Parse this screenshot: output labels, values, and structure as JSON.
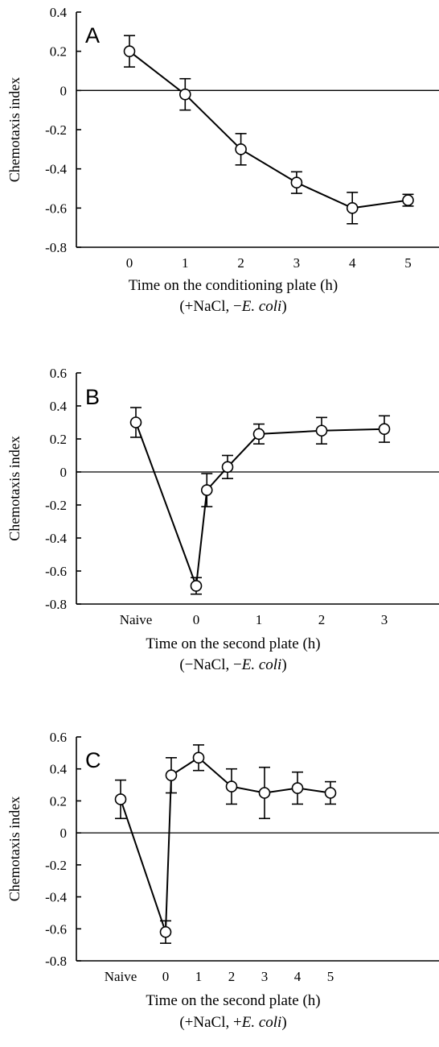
{
  "chart_data": [
    {
      "type": "scatter",
      "panel_label": "A",
      "ylabel": "Chemotaxis index",
      "xlabel_line1": "Time on the conditioning plate (h)",
      "xlabel_line2_pre": "(+NaCl, −",
      "xlabel_line2_ital": "E. coli",
      "xlabel_line2_post": ")",
      "ylim": [
        -0.8,
        0.4
      ],
      "yticks": [
        "0.4",
        "0.2",
        "0",
        "-0.2",
        "-0.4",
        "-0.6",
        "-0.8"
      ],
      "xticks": [
        "0",
        "1",
        "2",
        "3",
        "4",
        "5"
      ],
      "points": [
        {
          "x": 0,
          "y": 0.2,
          "err": 0.08
        },
        {
          "x": 1,
          "y": -0.02,
          "err": 0.08
        },
        {
          "x": 2,
          "y": -0.3,
          "err": 0.08
        },
        {
          "x": 3,
          "y": -0.47,
          "err": 0.055
        },
        {
          "x": 4,
          "y": -0.6,
          "err": 0.08
        },
        {
          "x": 5,
          "y": -0.56,
          "err": 0.03
        }
      ]
    },
    {
      "type": "scatter",
      "panel_label": "B",
      "ylabel": "Chemotaxis index",
      "xlabel_line1": "Time on the second plate (h)",
      "xlabel_line2_pre": "(−NaCl, −",
      "xlabel_line2_ital": "E. coli",
      "xlabel_line2_post": ")",
      "ylim": [
        -0.8,
        0.6
      ],
      "yticks": [
        "0.6",
        "0.4",
        "0.2",
        "0",
        "-0.2",
        "-0.4",
        "-0.6",
        "-0.8"
      ],
      "xticks": [
        "Naive",
        "0",
        "1",
        "2",
        "3"
      ],
      "points": [
        {
          "x": "Naive",
          "y": 0.3,
          "err": 0.09
        },
        {
          "x": "0",
          "y": -0.69,
          "err": 0.05
        },
        {
          "x": "0.17",
          "y": -0.11,
          "err": 0.1
        },
        {
          "x": "0.5",
          "y": 0.03,
          "err": 0.07
        },
        {
          "x": "1",
          "y": 0.23,
          "err": 0.06
        },
        {
          "x": "2",
          "y": 0.25,
          "err": 0.08
        },
        {
          "x": "3",
          "y": 0.26,
          "err": 0.08
        }
      ]
    },
    {
      "type": "scatter",
      "panel_label": "C",
      "ylabel": "Chemotaxis index",
      "xlabel_line1": "Time on the second plate (h)",
      "xlabel_line2_pre": "(+NaCl, +",
      "xlabel_line2_ital": "E. coli",
      "xlabel_line2_post": ")",
      "ylim": [
        -0.8,
        0.6
      ],
      "yticks": [
        "0.6",
        "0.4",
        "0.2",
        "0",
        "-0.2",
        "-0.4",
        "-0.6",
        "-0.8"
      ],
      "xticks": [
        "Naive",
        "0",
        "1",
        "2",
        "3",
        "4",
        "5"
      ],
      "points": [
        {
          "x": "Naive",
          "y": 0.21,
          "err": 0.12
        },
        {
          "x": "0",
          "y": -0.62,
          "err": 0.07
        },
        {
          "x": "0.17",
          "y": 0.36,
          "err": 0.11
        },
        {
          "x": "1",
          "y": 0.47,
          "err": 0.08
        },
        {
          "x": "2",
          "y": 0.29,
          "err": 0.11
        },
        {
          "x": "3",
          "y": 0.25,
          "err": 0.16
        },
        {
          "x": "4",
          "y": 0.28,
          "err": 0.1
        },
        {
          "x": "5",
          "y": 0.25,
          "err": 0.07
        }
      ]
    }
  ]
}
